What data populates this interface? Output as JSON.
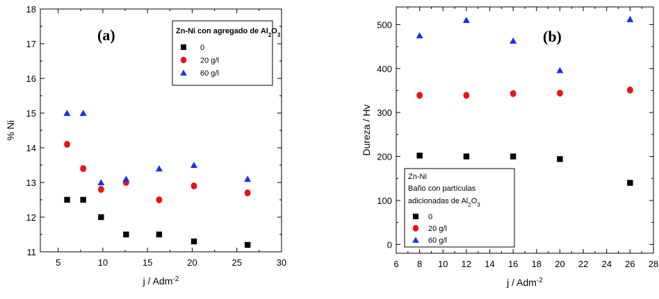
{
  "chart_data": [
    {
      "type": "scatter",
      "panel_label": "(a)",
      "xlabel": "j / Adm",
      "xlabel_sup": "-2",
      "ylabel": "% Ni",
      "xlim": [
        3,
        30
      ],
      "ylim": [
        11,
        18
      ],
      "xticks": [
        5,
        10,
        15,
        20,
        25,
        30
      ],
      "yticks": [
        11,
        12,
        13,
        14,
        15,
        16,
        17,
        18
      ],
      "legend_position": "top-right",
      "legend_title": "Zn-Ni con agregado de Al2O3",
      "legend_title_parts": [
        "Zn-Ni con agregado de Al",
        "2",
        "O",
        "3"
      ],
      "series": [
        {
          "name": "0",
          "marker": "square",
          "color": "#000000",
          "x": [
            6,
            7.8,
            9.8,
            12.6,
            16.3,
            20.2,
            26.2
          ],
          "y": [
            12.5,
            12.5,
            12.0,
            11.5,
            11.5,
            11.3,
            11.2
          ]
        },
        {
          "name": "20 g/l",
          "marker": "circle",
          "color": "#e8141a",
          "x": [
            6,
            7.8,
            9.8,
            12.6,
            16.3,
            20.2,
            26.2
          ],
          "y": [
            14.1,
            13.4,
            12.8,
            13.0,
            12.5,
            12.9,
            12.7
          ]
        },
        {
          "name": "60 g/l",
          "marker": "triangle",
          "color": "#1432e6",
          "x": [
            6,
            7.8,
            9.8,
            12.6,
            16.3,
            20.2,
            26.2
          ],
          "y": [
            15.0,
            15.0,
            13.0,
            13.1,
            13.4,
            13.5,
            13.1
          ]
        }
      ]
    },
    {
      "type": "scatter",
      "panel_label": "(b)",
      "xlabel": "j / Adm",
      "xlabel_sup": "-2",
      "ylabel": "Dureza / Hv",
      "xlim": [
        6,
        28
      ],
      "ylim": [
        -20,
        540
      ],
      "xticks": [
        6,
        8,
        10,
        12,
        14,
        16,
        18,
        20,
        22,
        24,
        26,
        28
      ],
      "yticks": [
        0,
        100,
        200,
        300,
        400,
        500
      ],
      "legend_position": "bottom-left",
      "legend_title_lines": [
        "Zn-Ni",
        "Baño con partículas",
        "adicionadas de Al2O3"
      ],
      "legend_title_line3_parts": [
        "adicionadas de Al",
        "2",
        "O",
        "3"
      ],
      "series": [
        {
          "name": "0",
          "marker": "square",
          "color": "#000000",
          "x": [
            8,
            12,
            16,
            20,
            26
          ],
          "y": [
            202,
            200,
            200,
            194,
            140
          ]
        },
        {
          "name": "20 g/l",
          "marker": "circle",
          "color": "#e8141a",
          "x": [
            8,
            12,
            16,
            20,
            26
          ],
          "y": [
            339,
            339,
            343,
            344,
            351
          ]
        },
        {
          "name": "60 g/l",
          "marker": "triangle",
          "color": "#1432e6",
          "x": [
            8,
            12,
            16,
            20,
            26
          ],
          "y": [
            475,
            510,
            463,
            396,
            512
          ]
        }
      ]
    }
  ]
}
